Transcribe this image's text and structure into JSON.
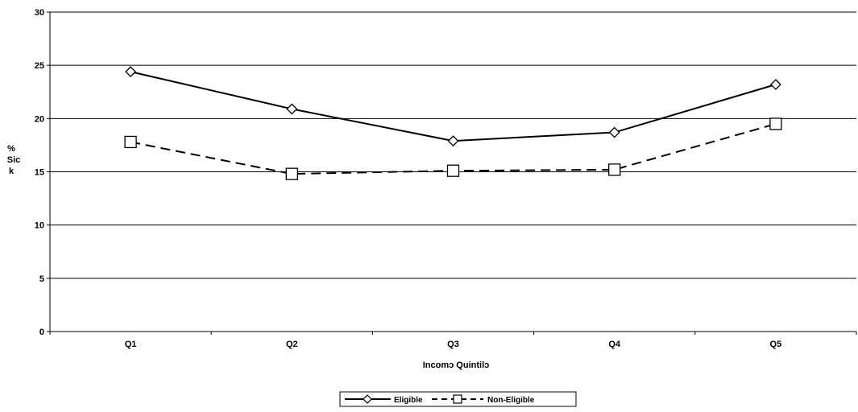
{
  "chart_data": {
    "type": "line",
    "title": "",
    "xlabel": "Incomɔ Quintilɔ",
    "ylabel_lines": [
      "%",
      "Sic",
      "k"
    ],
    "categories": [
      "Q1",
      "Q2",
      "Q3",
      "Q4",
      "Q5"
    ],
    "ylim": [
      0,
      30
    ],
    "yticks": [
      0,
      5,
      10,
      15,
      20,
      25,
      30
    ],
    "grid": true,
    "legend_position": "bottom",
    "series": [
      {
        "name": "Eligible",
        "values": [
          24.4,
          20.9,
          17.9,
          18.7,
          23.2
        ],
        "marker": "diamond",
        "line_style": "solid",
        "color": "#000000"
      },
      {
        "name": "Non-Eligible",
        "values": [
          17.8,
          14.8,
          15.1,
          15.2,
          19.5
        ],
        "marker": "square",
        "line_style": "dashed",
        "color": "#000000"
      }
    ]
  }
}
